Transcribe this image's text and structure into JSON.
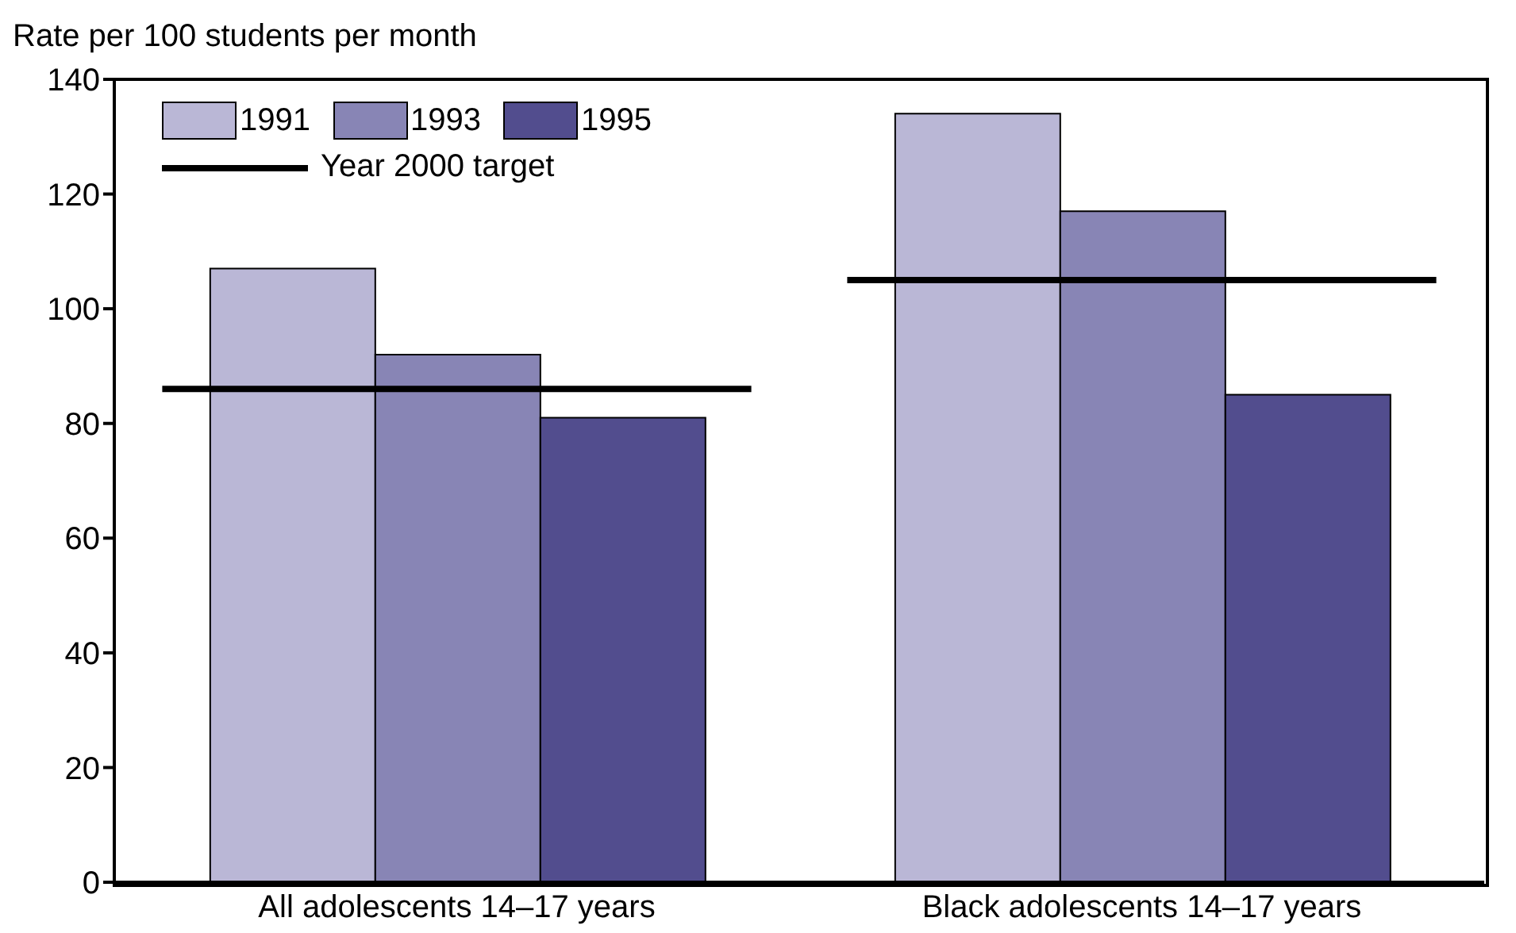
{
  "chart_data": {
    "type": "bar",
    "ylabel": "Rate per 100 students per month",
    "categories": [
      "All adolescents 14–17 years",
      "Black adolescents 14–17 years"
    ],
    "series": [
      {
        "name": "1991",
        "color": "#bab7d6",
        "values": [
          107,
          134
        ]
      },
      {
        "name": "1993",
        "color": "#8885b5",
        "values": [
          92,
          117
        ]
      },
      {
        "name": "1995",
        "color": "#524d8e",
        "values": [
          81,
          85
        ]
      }
    ],
    "ref_lines": [
      {
        "axis": "y",
        "value": 86,
        "label": "Year 2000 target",
        "color": "#000000",
        "line_style": "solid"
      },
      {
        "axis": "y",
        "value": 105,
        "color": "#000000",
        "line_style": "solid"
      }
    ],
    "ylim": [
      0,
      140
    ],
    "yticks": [
      0,
      20,
      40,
      60,
      80,
      100,
      120,
      140
    ],
    "grid": false,
    "legend": "top left"
  }
}
